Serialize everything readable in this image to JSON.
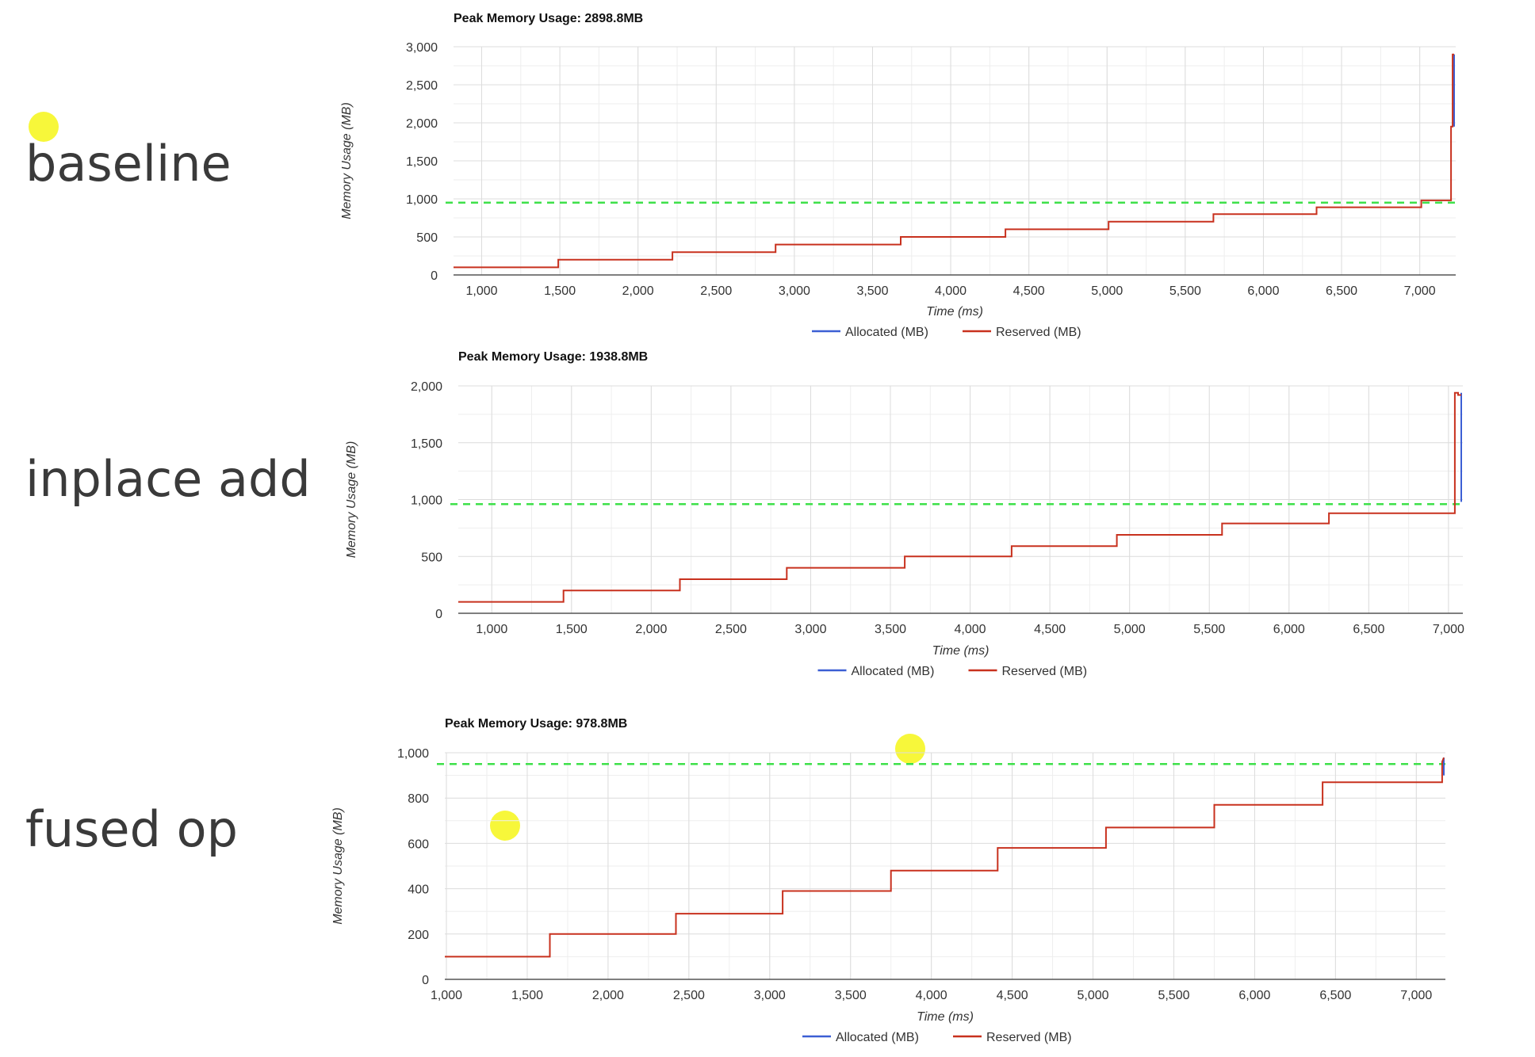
{
  "rows": [
    {
      "label": "baseline"
    },
    {
      "label": "inplace add"
    },
    {
      "label": "fused op"
    }
  ],
  "colors": {
    "allocated": "#3c5fd4",
    "reserved": "#c8311e",
    "threshold": "#3ee04a",
    "grid": "#dcdcdc",
    "highlight": "#f7f73a"
  },
  "chart_data": [
    {
      "type": "line",
      "title": "Peak Memory Usage: 2898.8MB",
      "xlabel": "Time (ms)",
      "ylabel": "Memory Usage (MB)",
      "xlim": [
        820,
        7230
      ],
      "ylim": [
        0,
        3000
      ],
      "xticks": [
        1000,
        1500,
        2000,
        2500,
        3000,
        3500,
        4000,
        4500,
        5000,
        5500,
        6000,
        6500,
        7000
      ],
      "yticks": [
        0,
        500,
        1000,
        1500,
        2000,
        2500,
        3000
      ],
      "grid": true,
      "legend": {
        "position": "bottom",
        "entries": [
          "Allocated (MB)",
          "Reserved (MB)"
        ]
      },
      "threshold": 950,
      "series": [
        {
          "name": "Allocated (MB)",
          "x": [
            7220,
            7220
          ],
          "y": [
            2898.8,
            1950
          ]
        },
        {
          "name": "Reserved (MB)",
          "x": [
            820,
            1490,
            1490,
            2220,
            2220,
            2880,
            2880,
            3680,
            3680,
            4350,
            4350,
            5010,
            5010,
            5680,
            5680,
            6340,
            6340,
            7010,
            7010,
            7200,
            7200,
            7210,
            7210,
            7220
          ],
          "y": [
            100,
            100,
            200,
            200,
            300,
            300,
            400,
            400,
            500,
            500,
            600,
            600,
            700,
            700,
            800,
            800,
            890,
            890,
            980,
            980,
            1950,
            1950,
            2898.8,
            2898.8
          ]
        }
      ]
    },
    {
      "type": "line",
      "title": "Peak Memory Usage: 1938.8MB",
      "xlabel": "Time (ms)",
      "ylabel": "Memory Usage (MB)",
      "xlim": [
        790,
        7090
      ],
      "ylim": [
        0,
        2000
      ],
      "xticks": [
        1000,
        1500,
        2000,
        2500,
        3000,
        3500,
        4000,
        4500,
        5000,
        5500,
        6000,
        6500,
        7000
      ],
      "yticks": [
        0,
        500,
        1000,
        1500,
        2000
      ],
      "grid": true,
      "legend": {
        "position": "bottom",
        "entries": [
          "Allocated (MB)",
          "Reserved (MB)"
        ]
      },
      "threshold": 960,
      "series": [
        {
          "name": "Allocated (MB)",
          "x": [
            7080,
            7080
          ],
          "y": [
            1938.8,
            980
          ]
        },
        {
          "name": "Reserved (MB)",
          "x": [
            790,
            1450,
            1450,
            2180,
            2180,
            2850,
            2850,
            3590,
            3590,
            4260,
            4260,
            4920,
            4920,
            5580,
            5580,
            6250,
            6250,
            7040,
            7040,
            7060,
            7060,
            7080
          ],
          "y": [
            100,
            100,
            200,
            200,
            300,
            300,
            400,
            400,
            500,
            500,
            590,
            590,
            690,
            690,
            790,
            790,
            880,
            880,
            1938.8,
            1938.8,
            1920,
            1920
          ]
        }
      ]
    },
    {
      "type": "line",
      "title": "Peak Memory Usage: 978.8MB",
      "xlabel": "Time (ms)",
      "ylabel": "Memory Usage (MB)",
      "xlim": [
        990,
        7180
      ],
      "ylim": [
        0,
        1000
      ],
      "xticks": [
        1000,
        1500,
        2000,
        2500,
        3000,
        3500,
        4000,
        4500,
        5000,
        5500,
        6000,
        6500,
        7000
      ],
      "yticks": [
        0,
        200,
        400,
        600,
        800,
        1000
      ],
      "grid": true,
      "legend": {
        "position": "bottom",
        "entries": [
          "Allocated (MB)",
          "Reserved (MB)"
        ]
      },
      "threshold": 950,
      "series": [
        {
          "name": "Allocated (MB)",
          "x": [
            7170,
            7170
          ],
          "y": [
            978.8,
            900
          ]
        },
        {
          "name": "Reserved (MB)",
          "x": [
            990,
            1640,
            1640,
            2420,
            2420,
            3080,
            3080,
            3750,
            3750,
            4410,
            4410,
            5080,
            5080,
            5750,
            5750,
            6420,
            6420,
            7160,
            7160,
            7170
          ],
          "y": [
            100,
            100,
            200,
            200,
            290,
            290,
            390,
            390,
            480,
            480,
            580,
            580,
            670,
            670,
            770,
            770,
            870,
            870,
            960,
            978.8
          ]
        }
      ]
    }
  ]
}
